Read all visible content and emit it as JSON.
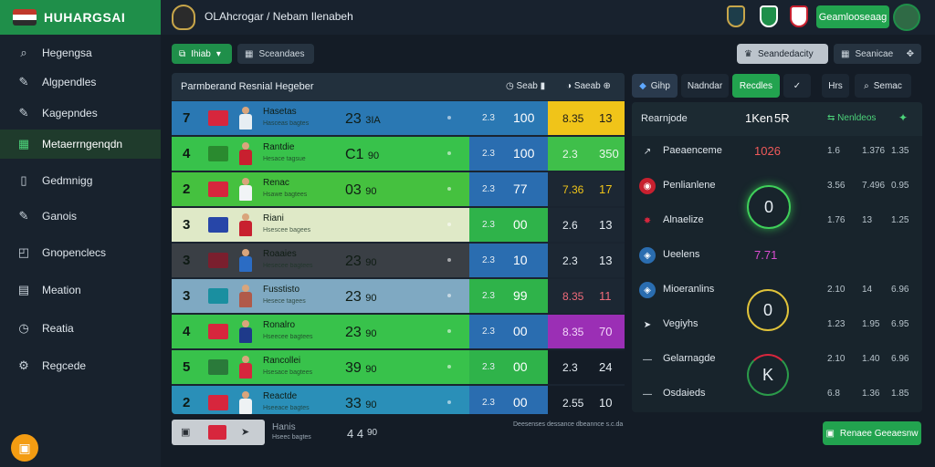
{
  "brand": {
    "name": "HUHARGSAI"
  },
  "header": {
    "crumb": "OLAhcrogar / Nebam Ilenabeh",
    "action_button": "Geamlooseaag"
  },
  "sidebar": {
    "items": [
      {
        "label": "Hegengsa",
        "icon": "search-icon"
      },
      {
        "label": "Algpendles",
        "icon": "pen-icon"
      },
      {
        "label": "Kagepndes",
        "icon": "pen-icon"
      },
      {
        "label": "Metaerrngenqdn",
        "icon": "grid-icon"
      },
      {
        "label": "Gedmnigg",
        "icon": "document-icon"
      },
      {
        "label": "Ganois",
        "icon": "pen-icon"
      },
      {
        "label": "Gnopenclecs",
        "icon": "chart-icon"
      },
      {
        "label": "Meation",
        "icon": "calendar-icon"
      },
      {
        "label": "Reatia",
        "icon": "clock-icon"
      },
      {
        "label": "Regcede",
        "icon": "gear-icon"
      }
    ]
  },
  "toolbar": {
    "filter_chip": "Ihiab",
    "secondary_chip": "Sceandaes",
    "right_chip": "Seandedacity",
    "right_chip_2": "Seanicae"
  },
  "table": {
    "title": "Parmberand Resnial Hegeber",
    "control_1": "Seab",
    "control_2": "Saeab",
    "rows": [
      {
        "rank": "7",
        "name": "Hasetas",
        "sub": "Hasceas bagtes",
        "score": "23",
        "score_small": "3IA",
        "b1": "2.3",
        "b2": "100",
        "c1": "8.35",
        "c2": "13",
        "row_color": "#2a78b3",
        "b_color": "#2a78b3",
        "c_color": "#f0c419",
        "c_text": "#1a1a1a",
        "shirt": "#e7eef3",
        "badge": "#d7263d"
      },
      {
        "rank": "4",
        "name": "Rantdie",
        "sub": "Hesace tagsue",
        "score": "C1",
        "score_small": "90",
        "b1": "2.3",
        "b2": "100",
        "c1": "2.3",
        "c2": "350",
        "row_color": "#38c24b",
        "b_color": "#2a6db0",
        "c_color": "#3fbf4a",
        "c_text": "#eaf7ec",
        "shirt": "#c8202f",
        "badge": "#2a8a2f"
      },
      {
        "rank": "2",
        "name": "Renac",
        "sub": "Hsawe bagtees",
        "score": "03",
        "score_small": "90",
        "b1": "2.3",
        "b2": "77",
        "c1": "7.36",
        "c2": "17",
        "row_color": "#45c13f",
        "b_color": "#2a6db0",
        "c_color": "#1c2733",
        "c_text": "#f0c419",
        "shirt": "#f1f4f6",
        "badge": "#d7263d"
      },
      {
        "rank": "3",
        "name": "Riani",
        "sub": "Hsescee bagees",
        "score": "",
        "score_small": "",
        "b1": "2.3",
        "b2": "00",
        "c1": "2.6",
        "c2": "13",
        "row_color": "#dfe9c7",
        "b_color": "#2fb34a",
        "c_color": "#1c2733",
        "c_text": "#e6edf3",
        "shirt": "#c8202f",
        "badge": "#2746a8"
      },
      {
        "rank": "3",
        "name": "Roaaies",
        "sub": "Hesecee bagtees",
        "score": "23",
        "score_small": "90",
        "b1": "2.3",
        "b2": "10",
        "c1": "2.3",
        "c2": "13",
        "row_color": "#3a3f45",
        "b_color": "#2a6db0",
        "c_color": "#1c2733",
        "c_text": "#e6edf3",
        "shirt": "#2b6cc4",
        "badge": "#7a1f2e"
      },
      {
        "rank": "3",
        "name": "Fusstisto",
        "sub": "Hesece tagees",
        "score": "23",
        "score_small": "90",
        "b1": "2.3",
        "b2": "99",
        "c1": "8.35",
        "c2": "11",
        "row_color": "#7fa9c2",
        "b_color": "#2fb34a",
        "c_color": "#1c2733",
        "c_text": "#f06b7a",
        "shirt": "#b05a4a",
        "badge": "#1a8fa0"
      },
      {
        "rank": "4",
        "name": "Ronalro",
        "sub": "Hseecee bagtees",
        "score": "23",
        "score_small": "90",
        "b1": "2.3",
        "b2": "00",
        "c1": "8.35",
        "c2": "70",
        "row_color": "#38c24b",
        "b_color": "#2a6db0",
        "c_color": "#9b2fb5",
        "c_text": "#f3d7fa",
        "shirt": "#1e3a8a",
        "badge": "#d7263d"
      },
      {
        "rank": "5",
        "name": "Rancollei",
        "sub": "Hsesace bagtees",
        "score": "39",
        "score_small": "90",
        "b1": "2.3",
        "b2": "00",
        "c1": "2.3",
        "c2": "24",
        "row_color": "#38c24b",
        "b_color": "#2fb34a",
        "c_color": "#141c26",
        "c_text": "#e6edf3",
        "shirt": "#d7263d",
        "badge": "#2a7a3a"
      },
      {
        "rank": "2",
        "name": "Reactde",
        "sub": "Hseeace bagtes",
        "score": "33",
        "score_small": "90",
        "b1": "2.3",
        "b2": "00",
        "c1": "2.55",
        "c2": "10",
        "row_color": "#2a8fb8",
        "b_color": "#2a6db0",
        "c_color": "#141c26",
        "c_text": "#e6edf3",
        "shirt": "#eef2f4",
        "badge": "#d7263d"
      }
    ],
    "footer_a": "Hanis",
    "footer_b": "Hseec bagtes",
    "footer_score": "4 4",
    "footer_score_small": "90",
    "footer_caption": "Deesenses dessance dbeannce s.c.da"
  },
  "right_panel": {
    "tabs": [
      "Gihp",
      "Nadndar",
      "Recdles",
      "",
      "Hrs",
      "Semac"
    ],
    "header_label": "Rearnjode",
    "header_value": "1Ken",
    "header_value_b": "5R",
    "header_extra": "Nenldeos",
    "rows": [
      {
        "label": "Paeaenceme",
        "value": "1026",
        "v1": "1.6",
        "v2": "1.376",
        "v3": "1.35"
      },
      {
        "label": "Penlianlene",
        "value": "",
        "v1": "3.56",
        "v2": "7.496",
        "v3": "0.95"
      },
      {
        "label": "Alnaelize",
        "value": "",
        "v1": "1.76",
        "v2": "13",
        "v3": "1.25"
      },
      {
        "label": "Ueelens",
        "value": "7.71",
        "v1": "",
        "v2": "",
        "v3": ""
      },
      {
        "label": "Mioeranlins",
        "value": "",
        "v1": "2.10",
        "v2": "14",
        "v3": "6.96"
      },
      {
        "label": "Vegiyhs",
        "value": "",
        "v1": "1.23",
        "v2": "1.95",
        "v3": "6.95"
      },
      {
        "label": "Gelarnagde",
        "value": "",
        "v1": "2.10",
        "v2": "1.40",
        "v3": "6.96"
      },
      {
        "label": "Osdaieds",
        "value": "",
        "v1": "6.8",
        "v2": "1.36",
        "v3": "1.85"
      }
    ],
    "ring_1": "0",
    "ring_2": "0",
    "ring_3": "K"
  },
  "bottom_button": "Renaee Geeaesnw"
}
